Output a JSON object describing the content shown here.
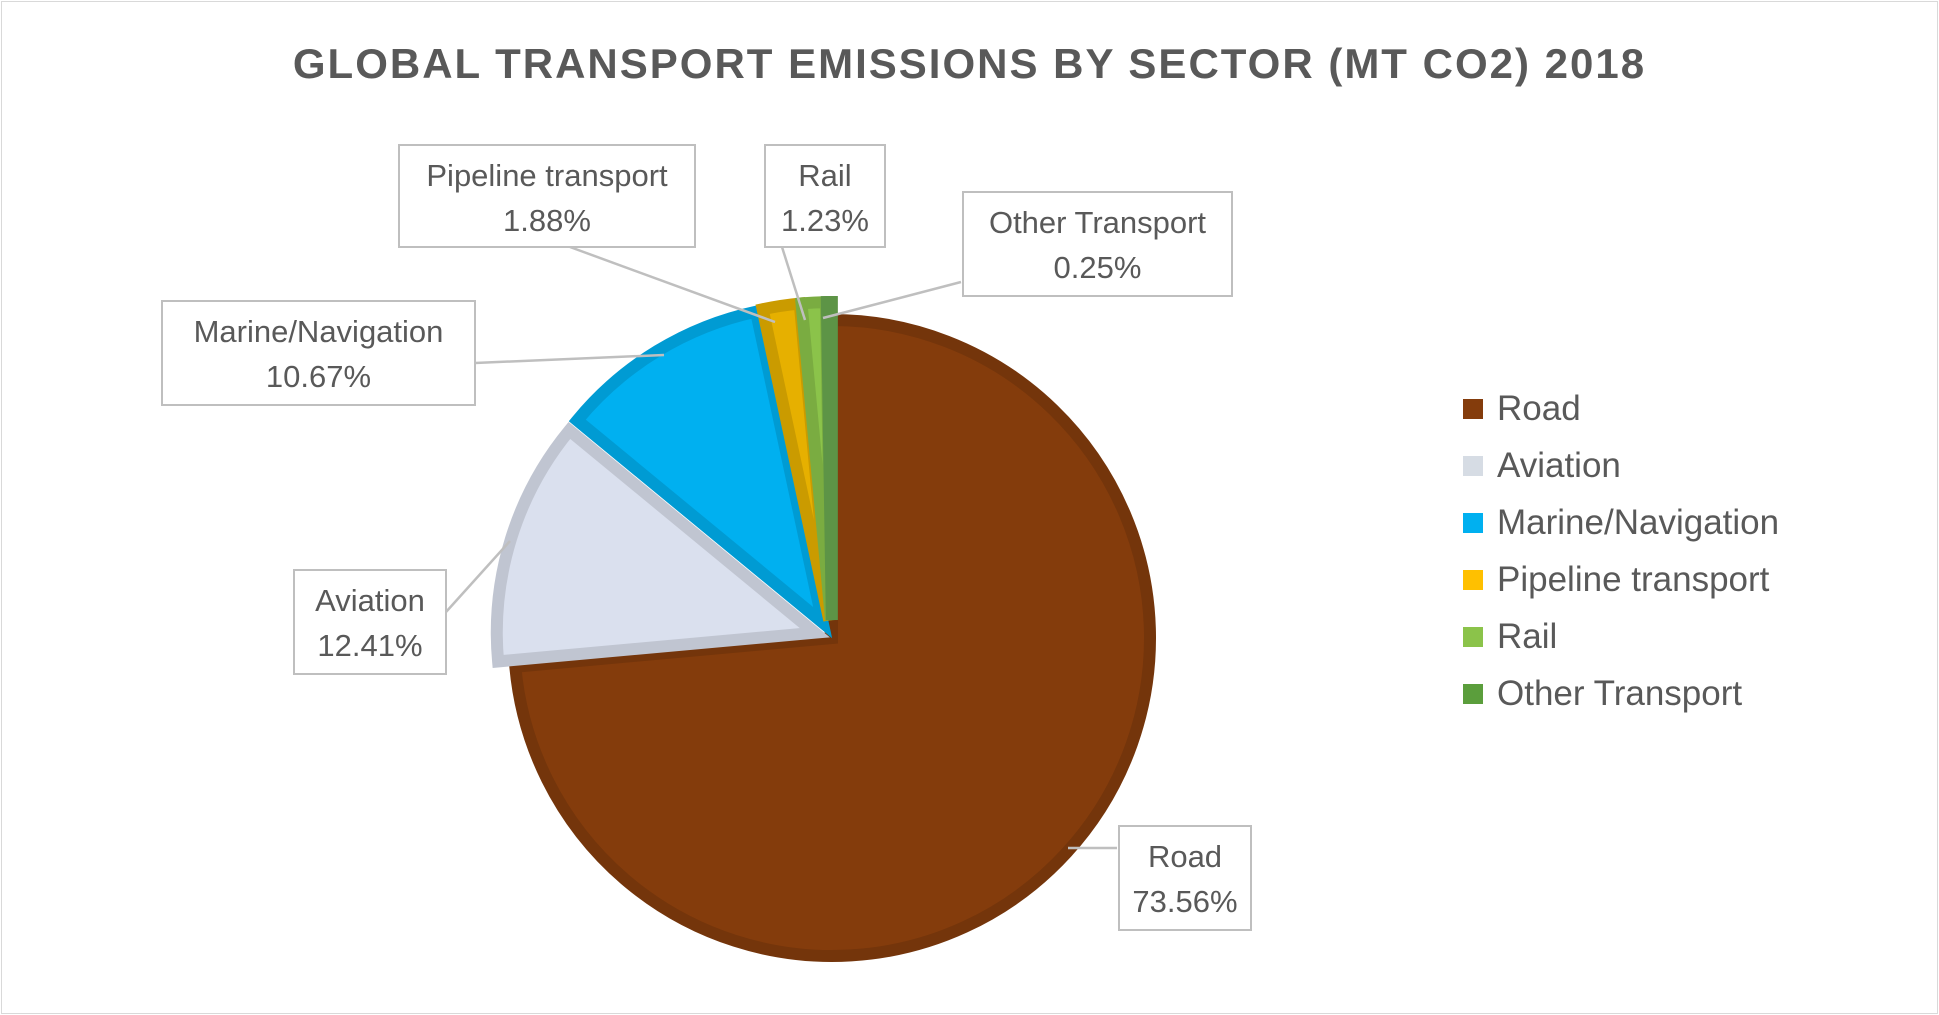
{
  "chart_data": {
    "type": "pie",
    "title": "GLOBAL TRANSPORT EMISSIONS BY SECTOR (MT CO2) 2018",
    "slices": [
      {
        "label": "Road",
        "value": 73.56,
        "display": "73.56%",
        "color": "#843c0c"
      },
      {
        "label": "Aviation",
        "value": 12.41,
        "display": "12.41%",
        "color": "#dae0ee"
      },
      {
        "label": "Marine/Navigation",
        "value": 10.67,
        "display": "10.67%",
        "color": "#00b0f0"
      },
      {
        "label": "Pipeline transport",
        "value": 1.88,
        "display": "1.88%",
        "color": "#e6b000"
      },
      {
        "label": "Rail",
        "value": 1.23,
        "display": "1.23%",
        "color": "#8bc34a"
      },
      {
        "label": "Other Transport",
        "value": 0.25,
        "display": "0.25%",
        "color": "#6aa84f"
      }
    ],
    "legend": {
      "position": "right",
      "items": [
        {
          "label": "Road",
          "color": "#843c0c"
        },
        {
          "label": "Aviation",
          "color": "#d6dce4"
        },
        {
          "label": "Marine/Navigation",
          "color": "#00b0f0"
        },
        {
          "label": "Pipeline transport",
          "color": "#ffc000"
        },
        {
          "label": "Rail",
          "color": "#8bc34a"
        },
        {
          "label": "Other Transport",
          "color": "#5b9e3c"
        }
      ]
    },
    "start_angle": "12 o'clock",
    "direction": "clockwise"
  }
}
